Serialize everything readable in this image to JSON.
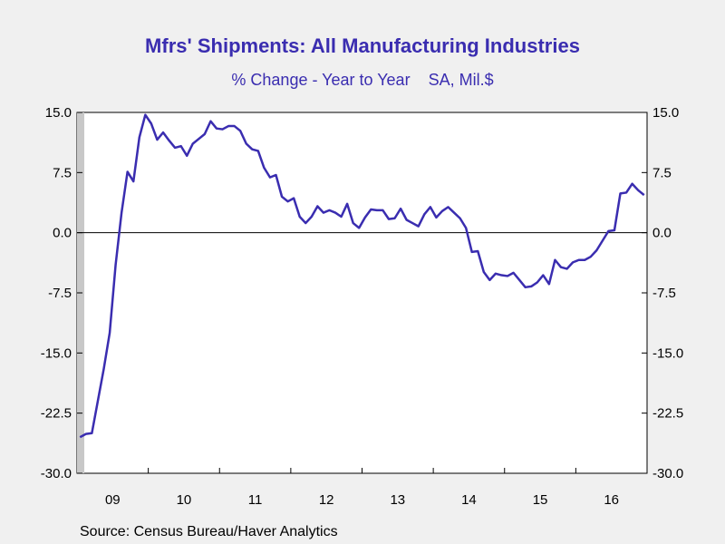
{
  "chart_data": {
    "type": "line",
    "title": "Mfrs' Shipments: All Manufacturing Industries",
    "subtitle": "% Change - Year to Year    SA, Mil.$",
    "source": "Source:  Census Bureau/Haver Analytics",
    "ylim": [
      -30,
      15
    ],
    "yticks": [
      15,
      7.5,
      0,
      -7.5,
      -15,
      -22.5,
      -30
    ],
    "ytick_labels": [
      "15.0",
      "7.5",
      "0.0",
      "-7.5",
      "-15.0",
      "-22.5",
      "-30.0"
    ],
    "x_range": [
      "2009-01",
      "2016-12"
    ],
    "x_tick_labels": [
      "09",
      "10",
      "11",
      "12",
      "13",
      "14",
      "15",
      "16"
    ],
    "grid": false,
    "zero_line": true,
    "line_color": "#3a2db0",
    "series": [
      {
        "x": [
          "2009-01",
          "2009-02",
          "2009-03",
          "2009-04",
          "2009-05",
          "2009-06",
          "2009-07",
          "2009-08",
          "2009-09",
          "2009-10",
          "2009-11",
          "2009-12",
          "2010-01",
          "2010-02",
          "2010-03",
          "2010-04",
          "2010-05",
          "2010-06",
          "2010-07",
          "2010-08",
          "2010-09",
          "2010-10",
          "2010-11",
          "2010-12",
          "2011-01",
          "2011-02",
          "2011-03",
          "2011-04",
          "2011-05",
          "2011-06",
          "2011-07",
          "2011-08",
          "2011-09",
          "2011-10",
          "2011-11",
          "2011-12",
          "2012-01",
          "2012-02",
          "2012-03",
          "2012-04",
          "2012-05",
          "2012-06",
          "2012-07",
          "2012-08",
          "2012-09",
          "2012-10",
          "2012-11",
          "2012-12",
          "2013-01",
          "2013-02",
          "2013-03",
          "2013-04",
          "2013-05",
          "2013-06",
          "2013-07",
          "2013-08",
          "2013-09",
          "2013-10",
          "2013-11",
          "2013-12",
          "2014-01",
          "2014-02",
          "2014-03",
          "2014-04",
          "2014-05",
          "2014-06",
          "2014-07",
          "2014-08",
          "2014-09",
          "2014-10",
          "2014-11",
          "2014-12",
          "2015-01",
          "2015-02",
          "2015-03",
          "2015-04",
          "2015-05",
          "2015-06",
          "2015-07",
          "2015-08",
          "2015-09",
          "2015-10",
          "2015-11",
          "2015-12",
          "2016-01",
          "2016-02",
          "2016-03",
          "2016-04",
          "2016-05",
          "2016-06",
          "2016-07",
          "2016-08",
          "2016-09",
          "2016-10",
          "2016-11",
          "2016-12"
        ],
        "values": [
          -25.5,
          -25.1,
          -25.0,
          -21.0,
          -17.0,
          -12.5,
          -4.0,
          2.5,
          7.6,
          6.4,
          11.9,
          14.7,
          13.6,
          11.6,
          12.5,
          11.5,
          10.6,
          10.8,
          9.6,
          11.1,
          11.7,
          12.3,
          13.9,
          13.0,
          12.9,
          13.3,
          13.3,
          12.7,
          11.1,
          10.4,
          10.2,
          8.1,
          6.9,
          7.2,
          4.5,
          3.9,
          4.3,
          2.0,
          1.2,
          2.0,
          3.3,
          2.5,
          2.8,
          2.5,
          2.0,
          3.6,
          1.2,
          0.6,
          1.9,
          2.9,
          2.8,
          2.8,
          1.7,
          1.8,
          3.0,
          1.6,
          1.2,
          0.8,
          2.3,
          3.2,
          1.9,
          2.7,
          3.2,
          2.5,
          1.8,
          0.6,
          -2.4,
          -2.3,
          -4.9,
          -5.9,
          -5.1,
          -5.3,
          -5.4,
          -5.0,
          -5.9,
          -6.8,
          -6.7,
          -6.2,
          -5.3,
          -6.4,
          -3.4,
          -4.3,
          -4.5,
          -3.7,
          -3.4,
          -3.4,
          -3.0,
          -2.2,
          -1.0,
          0.2,
          0.3,
          4.9,
          5.0,
          6.1,
          5.3,
          4.7
        ]
      }
    ]
  }
}
